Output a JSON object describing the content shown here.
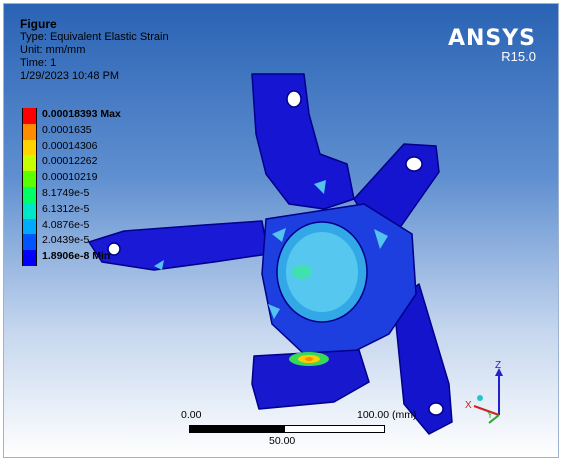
{
  "figure": {
    "title": "Figure",
    "type_line": "Type: Equivalent Elastic Strain",
    "unit_line": "Unit: mm/mm",
    "time_line": "Time: 1",
    "date_line": "1/29/2023 10:48 PM"
  },
  "brand": {
    "name": "ANSYS",
    "version": "R15.0"
  },
  "legend": {
    "items": [
      {
        "label": "0.00018393 Max",
        "color": "#ff0000",
        "bold": true
      },
      {
        "label": "0.0001635",
        "color": "#ff8c00",
        "bold": false
      },
      {
        "label": "0.00014306",
        "color": "#ffd200",
        "bold": false
      },
      {
        "label": "0.00012262",
        "color": "#c8ff00",
        "bold": false
      },
      {
        "label": "0.00010219",
        "color": "#5cff00",
        "bold": false
      },
      {
        "label": "8.1749e-5",
        "color": "#00ff66",
        "bold": false
      },
      {
        "label": "6.1312e-5",
        "color": "#00e6c8",
        "bold": false
      },
      {
        "label": "4.0876e-5",
        "color": "#00aaff",
        "bold": false
      },
      {
        "label": "2.0439e-5",
        "color": "#0055ff",
        "bold": false
      },
      {
        "label": "1.8906e-8 Min",
        "color": "#0000ff",
        "bold": true
      }
    ]
  },
  "scale_bar": {
    "left_label": "0.00",
    "right_label": "100.00 (mm)",
    "mid_label": "50.00"
  },
  "triad": {
    "z_label": "Z",
    "y_label": "Y",
    "x_label": "X"
  }
}
